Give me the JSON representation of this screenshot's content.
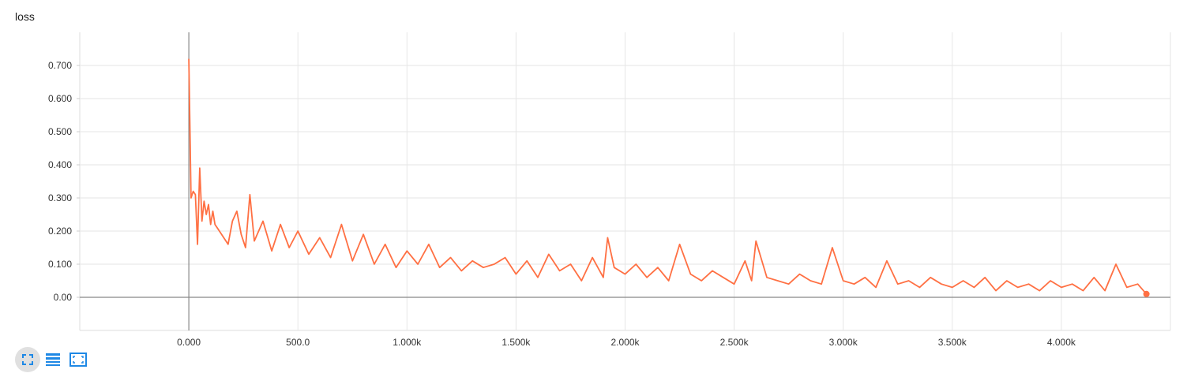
{
  "chart_data": {
    "type": "line",
    "title": "loss",
    "xlabel": "",
    "ylabel": "",
    "xlim": [
      -500,
      4500
    ],
    "ylim": [
      -0.1,
      0.8
    ],
    "x_ticks": [
      0,
      500,
      1000,
      1500,
      2000,
      2500,
      3000,
      3500,
      4000
    ],
    "x_tick_labels": [
      "0.000",
      "500.0",
      "1.000k",
      "1.500k",
      "2.000k",
      "2.500k",
      "3.000k",
      "3.500k",
      "4.000k"
    ],
    "y_ticks": [
      0,
      0.1,
      0.2,
      0.3,
      0.4,
      0.5,
      0.6,
      0.7
    ],
    "y_tick_labels": [
      "0.00",
      "0.100",
      "0.200",
      "0.300",
      "0.400",
      "0.500",
      "0.600",
      "0.700"
    ],
    "grid": true,
    "series": [
      {
        "color": "#ff7043",
        "x": [
          0,
          10,
          20,
          30,
          40,
          50,
          60,
          70,
          80,
          90,
          100,
          110,
          120,
          140,
          160,
          180,
          200,
          220,
          240,
          260,
          280,
          300,
          340,
          380,
          420,
          460,
          500,
          550,
          600,
          650,
          700,
          750,
          800,
          850,
          900,
          950,
          1000,
          1050,
          1100,
          1150,
          1200,
          1250,
          1300,
          1350,
          1400,
          1450,
          1500,
          1550,
          1600,
          1650,
          1700,
          1750,
          1800,
          1850,
          1900,
          1920,
          1950,
          2000,
          2050,
          2100,
          2150,
          2200,
          2250,
          2300,
          2350,
          2400,
          2450,
          2500,
          2550,
          2580,
          2600,
          2650,
          2700,
          2750,
          2800,
          2850,
          2900,
          2950,
          3000,
          3050,
          3100,
          3150,
          3200,
          3250,
          3300,
          3350,
          3400,
          3450,
          3500,
          3550,
          3600,
          3650,
          3700,
          3750,
          3800,
          3850,
          3900,
          3950,
          4000,
          4050,
          4100,
          4150,
          4200,
          4250,
          4300,
          4350,
          4390
        ],
        "y": [
          0.72,
          0.3,
          0.32,
          0.31,
          0.16,
          0.39,
          0.23,
          0.29,
          0.25,
          0.28,
          0.22,
          0.26,
          0.22,
          0.2,
          0.18,
          0.16,
          0.23,
          0.26,
          0.19,
          0.15,
          0.31,
          0.17,
          0.23,
          0.14,
          0.22,
          0.15,
          0.2,
          0.13,
          0.18,
          0.12,
          0.22,
          0.11,
          0.19,
          0.1,
          0.16,
          0.09,
          0.14,
          0.1,
          0.16,
          0.09,
          0.12,
          0.08,
          0.11,
          0.09,
          0.1,
          0.12,
          0.07,
          0.11,
          0.06,
          0.13,
          0.08,
          0.1,
          0.05,
          0.12,
          0.06,
          0.18,
          0.09,
          0.07,
          0.1,
          0.06,
          0.09,
          0.05,
          0.16,
          0.07,
          0.05,
          0.08,
          0.06,
          0.04,
          0.11,
          0.05,
          0.17,
          0.06,
          0.05,
          0.04,
          0.07,
          0.05,
          0.04,
          0.15,
          0.05,
          0.04,
          0.06,
          0.03,
          0.11,
          0.04,
          0.05,
          0.03,
          0.06,
          0.04,
          0.03,
          0.05,
          0.03,
          0.06,
          0.02,
          0.05,
          0.03,
          0.04,
          0.02,
          0.05,
          0.03,
          0.04,
          0.02,
          0.06,
          0.02,
          0.1,
          0.03,
          0.04,
          0.01
        ]
      }
    ]
  },
  "toolbar": {
    "buttons": [
      {
        "name": "fit-domain-button",
        "icon": "fit-to-data-icon",
        "active": true
      },
      {
        "name": "toggle-log-scale-button",
        "icon": "list-lines-icon",
        "active": false
      },
      {
        "name": "expand-chart-button",
        "icon": "fullscreen-frame-icon",
        "active": false
      }
    ]
  }
}
